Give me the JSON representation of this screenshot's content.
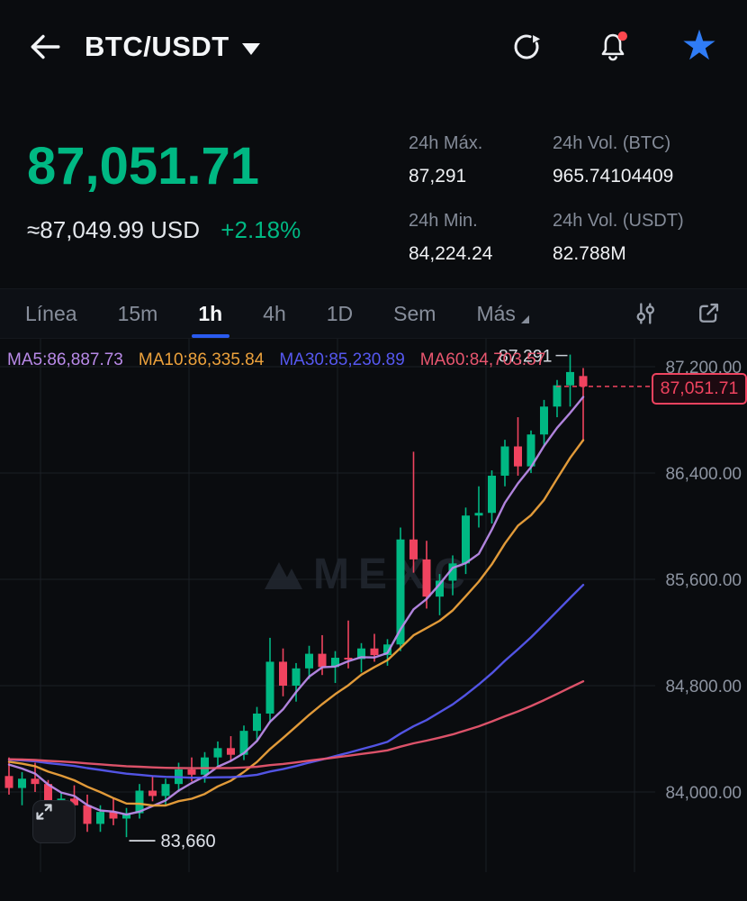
{
  "header": {
    "title": "BTC/USDT"
  },
  "price_panel": {
    "last_price": "87,051.71",
    "usd_value": "≈87,049.99 USD",
    "change_pct": "+2.18%",
    "stats": [
      {
        "label": "24h Máx.",
        "value": "87,291"
      },
      {
        "label": "24h Vol. (BTC)",
        "value": "965.74104409"
      },
      {
        "label": "24h Min.",
        "value": "84,224.24"
      },
      {
        "label": "24h Vol. (USDT)",
        "value": "82.788M"
      }
    ]
  },
  "toolbar": {
    "tabs": [
      {
        "label": "Línea",
        "active": false
      },
      {
        "label": "15m",
        "active": false
      },
      {
        "label": "1h",
        "active": true
      },
      {
        "label": "4h",
        "active": false
      },
      {
        "label": "1D",
        "active": false
      },
      {
        "label": "Sem",
        "active": false
      },
      {
        "label": "Más",
        "active": false
      }
    ]
  },
  "indicators": [
    {
      "label": "MA5:86,887.73",
      "color": "#b98ae8"
    },
    {
      "label": "MA10:86,335.84",
      "color": "#eda23c"
    },
    {
      "label": "MA30:85,230.89",
      "color": "#5658f0"
    },
    {
      "label": "MA60:84,703.57",
      "color": "#e8566f"
    }
  ],
  "watermark": "MEXC",
  "chart_data": {
    "type": "candlestick",
    "pair": "BTC/USDT",
    "interval": "1h",
    "y_ticks": [
      {
        "label": "87,200.00",
        "value": 87200
      },
      {
        "label": "86,400.00",
        "value": 86400
      },
      {
        "label": "85,600.00",
        "value": 85600
      },
      {
        "label": "84,800.00",
        "value": 84800
      },
      {
        "label": "84,000.00",
        "value": 84000
      }
    ],
    "last_price": 87051.71,
    "last_price_label": "87,051.71",
    "high_annotation": {
      "text": "87,291",
      "price": 87291,
      "candle_index": 43
    },
    "low_annotation": {
      "text": "83,660",
      "price": 83660,
      "candle_index": 9
    },
    "colors": {
      "up": "#00b883",
      "down": "#f0435f"
    },
    "ma_pad_close": 84250,
    "ma": [
      {
        "period": 5,
        "color": "#b98ae8"
      },
      {
        "period": 10,
        "color": "#eda23c"
      },
      {
        "period": 30,
        "color": "#5658f0"
      },
      {
        "period": 60,
        "color": "#e8566f"
      }
    ],
    "candles": [
      [
        84120,
        84260,
        83980,
        84030
      ],
      [
        84030,
        84150,
        83900,
        84100
      ],
      [
        84100,
        84220,
        84000,
        84060
      ],
      [
        84060,
        84090,
        83780,
        83840
      ],
      [
        83840,
        84000,
        83720,
        83950
      ],
      [
        83950,
        84050,
        83850,
        83900
      ],
      [
        83900,
        83980,
        83700,
        83760
      ],
      [
        83760,
        83900,
        83700,
        83850
      ],
      [
        83850,
        83950,
        83750,
        83800
      ],
      [
        83800,
        83880,
        83660,
        83840
      ],
      [
        83840,
        84060,
        83800,
        84010
      ],
      [
        84010,
        84120,
        83930,
        83970
      ],
      [
        83970,
        84100,
        83900,
        84060
      ],
      [
        84060,
        84220,
        84000,
        84170
      ],
      [
        84170,
        84260,
        84080,
        84130
      ],
      [
        84130,
        84300,
        84070,
        84260
      ],
      [
        84260,
        84380,
        84180,
        84330
      ],
      [
        84330,
        84420,
        84230,
        84280
      ],
      [
        84280,
        84500,
        84240,
        84460
      ],
      [
        84460,
        84640,
        84380,
        84590
      ],
      [
        84590,
        85160,
        84520,
        84980
      ],
      [
        84980,
        85080,
        84720,
        84800
      ],
      [
        84800,
        84970,
        84680,
        84930
      ],
      [
        84930,
        85100,
        84850,
        85040
      ],
      [
        85040,
        85180,
        84880,
        84940
      ],
      [
        84940,
        85060,
        84820,
        85010
      ],
      [
        85010,
        85290,
        84930,
        85000
      ],
      [
        85000,
        85120,
        84900,
        85080
      ],
      [
        85080,
        85190,
        84980,
        85030
      ],
      [
        85030,
        85150,
        84950,
        85110
      ],
      [
        85110,
        85990,
        85060,
        85900
      ],
      [
        85900,
        86560,
        85650,
        85750
      ],
      [
        85750,
        85890,
        85380,
        85470
      ],
      [
        85470,
        85640,
        85330,
        85590
      ],
      [
        85590,
        85780,
        85480,
        85720
      ],
      [
        85720,
        86140,
        85640,
        86080
      ],
      [
        86080,
        86300,
        85990,
        86100
      ],
      [
        86100,
        86420,
        86020,
        86380
      ],
      [
        86380,
        86650,
        86300,
        86600
      ],
      [
        86600,
        86820,
        86380,
        86450
      ],
      [
        86450,
        86720,
        86400,
        86690
      ],
      [
        86690,
        86950,
        86600,
        86900
      ],
      [
        86900,
        87100,
        86820,
        87060
      ],
      [
        87060,
        87291,
        86900,
        87160
      ],
      [
        87130,
        87190,
        86640,
        87051.71
      ]
    ]
  }
}
